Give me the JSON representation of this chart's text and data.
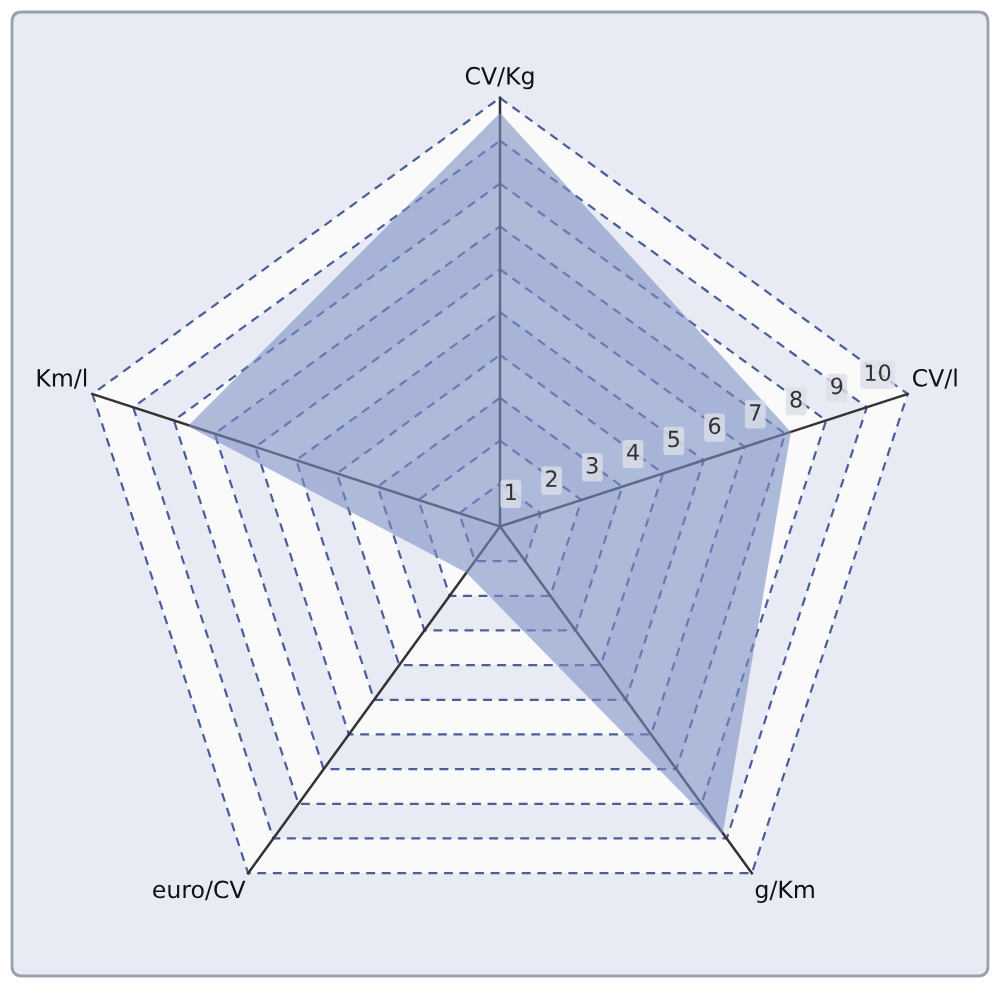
{
  "chart_data": {
    "type": "radar",
    "categories": [
      "CV/Kg",
      "CV/l",
      "g/Km",
      "euro/CV",
      "Km/l"
    ],
    "series": [
      {
        "color": "#7d90c4",
        "values": [
          9.6,
          7.1,
          8.8,
          1.3,
          7.6
        ]
      }
    ],
    "ylim": [
      0,
      10
    ],
    "yticks": [
      1,
      2,
      3,
      4,
      5,
      6,
      7,
      8,
      9,
      10
    ],
    "grid": true
  }
}
